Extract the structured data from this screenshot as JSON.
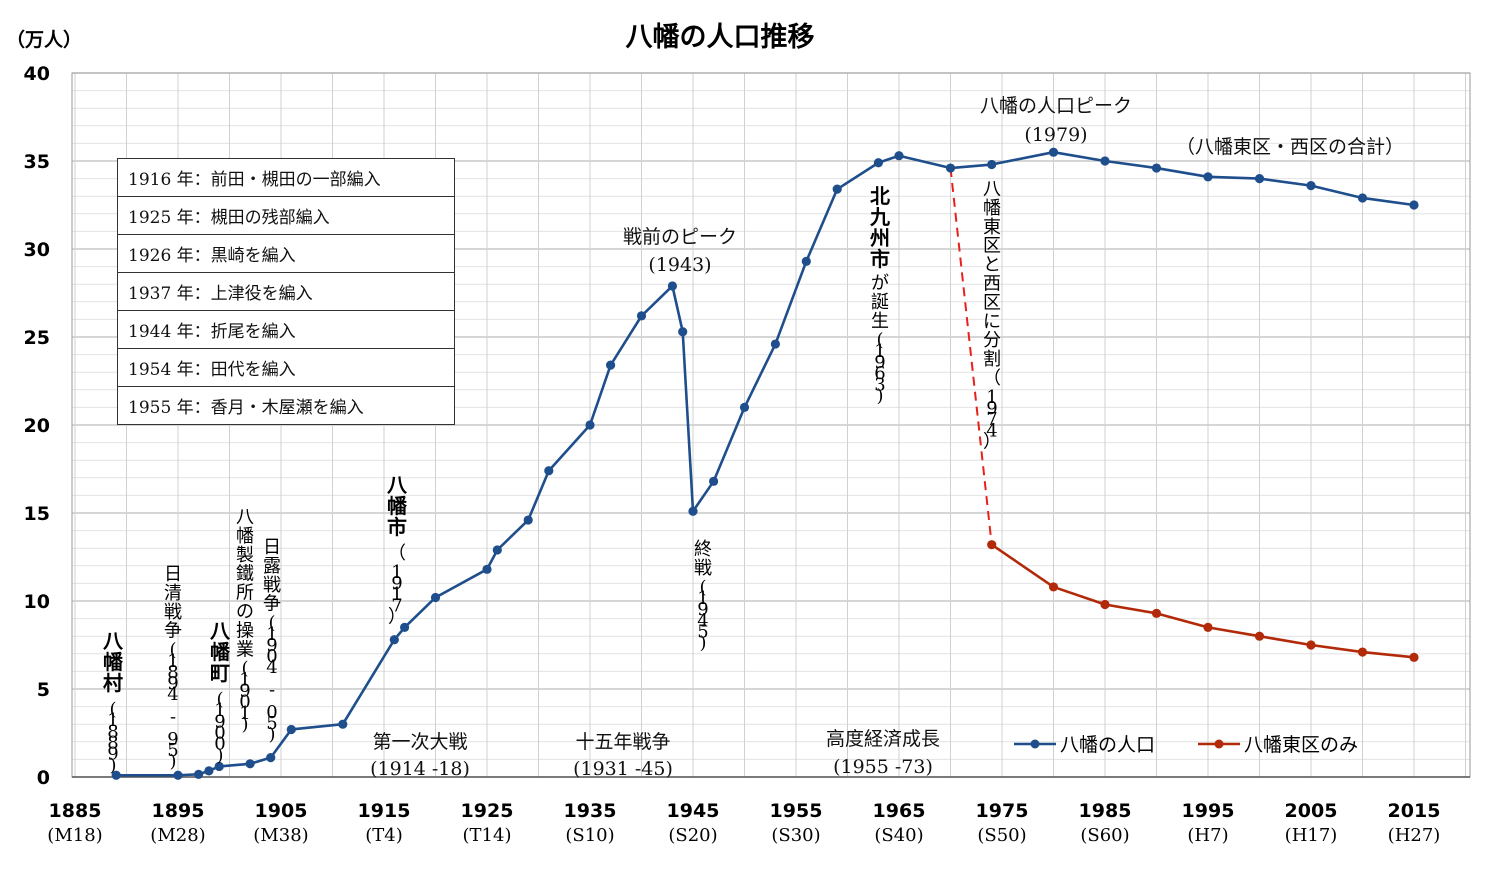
{
  "colors": {
    "total": "#1f4e8c",
    "east": "#b22a0a",
    "split_line": "#e8201c",
    "grid": "#cfcfcf",
    "axis": "#555555"
  },
  "chart_data": {
    "type": "line",
    "title": "八幡の人口推移",
    "ylabel": "（万人）",
    "ylim": [
      0,
      40
    ],
    "yticks": [
      0,
      5,
      10,
      15,
      20,
      25,
      30,
      35,
      40
    ],
    "xlim": [
      1885,
      2020
    ],
    "xticks": [
      {
        "year": 1885,
        "era": "(M18)"
      },
      {
        "year": 1895,
        "era": "(M28)"
      },
      {
        "year": 1905,
        "era": "(M38)"
      },
      {
        "year": 1915,
        "era": "(T4)"
      },
      {
        "year": 1925,
        "era": "(T14)"
      },
      {
        "year": 1935,
        "era": "(S10)"
      },
      {
        "year": 1945,
        "era": "(S20)"
      },
      {
        "year": 1955,
        "era": "(S30)"
      },
      {
        "year": 1965,
        "era": "(S40)"
      },
      {
        "year": 1975,
        "era": "(S50)"
      },
      {
        "year": 1985,
        "era": "(S60)"
      },
      {
        "year": 1995,
        "era": "(H7)"
      },
      {
        "year": 2005,
        "era": "(H17)"
      },
      {
        "year": 2015,
        "era": "(H27)"
      }
    ],
    "grid": true,
    "legend_position": "bottom-right",
    "series": [
      {
        "name": "八幡の人口",
        "color": "#1f4e8c",
        "points": [
          [
            1889,
            0.1
          ],
          [
            1895,
            0.1
          ],
          [
            1897,
            0.15
          ],
          [
            1898,
            0.35
          ],
          [
            1899,
            0.6
          ],
          [
            1902,
            0.75
          ],
          [
            1904,
            1.1
          ],
          [
            1906,
            2.7
          ],
          [
            1911,
            3.0
          ],
          [
            1916,
            7.8
          ],
          [
            1917,
            8.5
          ],
          [
            1920,
            10.2
          ],
          [
            1925,
            11.8
          ],
          [
            1926,
            12.9
          ],
          [
            1929,
            14.6
          ],
          [
            1931,
            17.4
          ],
          [
            1935,
            20.0
          ],
          [
            1937,
            23.4
          ],
          [
            1940,
            26.2
          ],
          [
            1943,
            27.9
          ],
          [
            1944,
            25.3
          ],
          [
            1945,
            15.1
          ],
          [
            1947,
            16.8
          ],
          [
            1950,
            21.0
          ],
          [
            1953,
            24.6
          ],
          [
            1956,
            29.3
          ],
          [
            1959,
            33.4
          ],
          [
            1963,
            34.9
          ],
          [
            1965,
            35.3
          ],
          [
            1970,
            34.6
          ],
          [
            1974,
            34.8
          ],
          [
            1980,
            35.5
          ],
          [
            1985,
            35.0
          ],
          [
            1990,
            34.6
          ],
          [
            1995,
            34.1
          ],
          [
            2000,
            34.0
          ],
          [
            2005,
            33.6
          ],
          [
            2010,
            32.9
          ],
          [
            2015,
            32.5
          ]
        ]
      },
      {
        "name": "八幡東区のみ",
        "color": "#b22a0a",
        "points": [
          [
            1974,
            13.2
          ],
          [
            1980,
            10.8
          ],
          [
            1985,
            9.8
          ],
          [
            1990,
            9.3
          ],
          [
            1995,
            8.5
          ],
          [
            2000,
            8.0
          ],
          [
            2005,
            7.5
          ],
          [
            2010,
            7.1
          ],
          [
            2015,
            6.8
          ]
        ]
      }
    ],
    "split_connector": {
      "from": [
        1970,
        34.6
      ],
      "to": [
        1974,
        13.2
      ]
    },
    "events_table": [
      "1916 年：前田・槻田の一部編入",
      "1925 年：槻田の残部編入",
      "1926 年：黒崎を編入",
      "1937 年：上津役を編入",
      "1944 年：折尾を編入",
      "1954 年：田代を編入",
      "1955 年：香月・木屋瀬を編入"
    ],
    "annotations": {
      "prewar_peak": "戦前のピーク",
      "prewar_peak_year": "(1943)",
      "peak": "八幡の人口ピーク",
      "peak_year": "(1979)",
      "total_note": "（八幡東区・西区の合計）",
      "wwi": "第一次大戦",
      "wwi_years": "(1914 -18)",
      "fifteen_year_war": "十五年戦争",
      "fifteen_year_war_years": "(1931 -45)",
      "high_growth": "高度経済成長",
      "high_growth_years": "(1955 -73)",
      "yahata_village": "八幡村",
      "yahata_village_year": "(1889)",
      "sino_japanese_war": "日清戦争(1894 - 95)",
      "yahata_town": "八幡町",
      "yahata_town_year": "(1900)",
      "steel_works": "八幡製鐵所の操業(1901)",
      "russo_japanese_war": "日露戦争(1904 - 05)",
      "yahata_city": "八幡市",
      "yahata_city_year": "（1917）",
      "war_end": "終戦(1945)",
      "kitakyushu_city": "北九州市",
      "kitakyushu_birth": "が誕生(1963)",
      "ward_split": "八幡東区と西区に分割（1974）"
    }
  }
}
